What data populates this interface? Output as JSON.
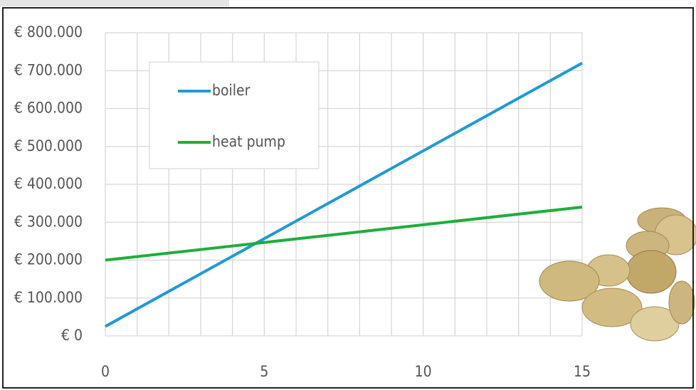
{
  "chart_data": {
    "type": "line",
    "x": [
      0,
      15
    ],
    "series": [
      {
        "name": "boiler",
        "color": "#1f9ad8",
        "values": [
          25000,
          720000
        ]
      },
      {
        "name": "heat pump",
        "color": "#1fae3a",
        "values": [
          200000,
          340000
        ]
      }
    ],
    "xlim": [
      0,
      15
    ],
    "xticks": [
      0,
      5,
      10,
      15
    ],
    "ylim": [
      0,
      800000
    ],
    "yticks": [
      {
        "value": 0,
        "label": "€ 0"
      },
      {
        "value": 100000,
        "label": "€ 100.000"
      },
      {
        "value": 200000,
        "label": "€ 200.000"
      },
      {
        "value": 300000,
        "label": "€ 300.000"
      },
      {
        "value": 400000,
        "label": "€ 400.000"
      },
      {
        "value": 500000,
        "label": "€ 500.000"
      },
      {
        "value": 600000,
        "label": "€ 600.000"
      },
      {
        "value": 700000,
        "label": "€ 700.000"
      },
      {
        "value": 800000,
        "label": "€ 800.000"
      }
    ],
    "grid": true,
    "legend": "upper-left"
  }
}
